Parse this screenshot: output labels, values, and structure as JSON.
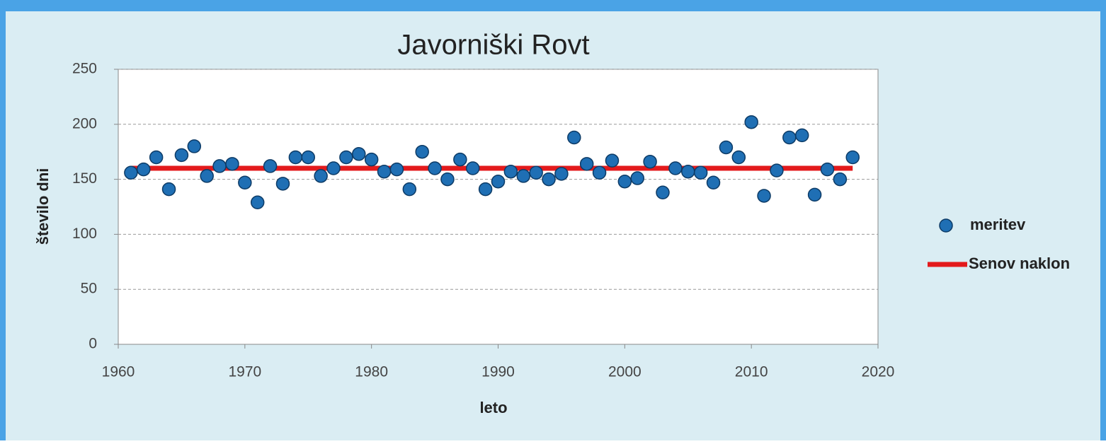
{
  "chart_data": {
    "type": "scatter",
    "title": "Javorniški Rovt",
    "xlabel": "leto",
    "ylabel": "število dni",
    "xlim": [
      1960,
      2020
    ],
    "xticks": [
      1960,
      1970,
      1980,
      1990,
      2000,
      2010,
      2020
    ],
    "ylim": [
      0,
      250
    ],
    "yticks": [
      0,
      50,
      100,
      150,
      200,
      250
    ],
    "grid": true,
    "legend": "right",
    "series": [
      {
        "name": "meritev",
        "mode": "markers",
        "color": "#1f6fb4",
        "x": [
          1961,
          1962,
          1963,
          1964,
          1965,
          1966,
          1967,
          1968,
          1969,
          1970,
          1971,
          1972,
          1973,
          1974,
          1975,
          1976,
          1977,
          1978,
          1979,
          1980,
          1981,
          1982,
          1983,
          1984,
          1985,
          1986,
          1987,
          1988,
          1989,
          1990,
          1991,
          1992,
          1993,
          1994,
          1995,
          1996,
          1997,
          1998,
          1999,
          2000,
          2001,
          2002,
          2003,
          2004,
          2005,
          2006,
          2007,
          2008,
          2009,
          2010,
          2011,
          2012,
          2013,
          2014,
          2015,
          2016,
          2017,
          2018
        ],
        "values": [
          156,
          159,
          170,
          141,
          172,
          180,
          153,
          162,
          164,
          147,
          129,
          162,
          146,
          170,
          170,
          153,
          160,
          170,
          173,
          168,
          157,
          159,
          141,
          175,
          160,
          150,
          168,
          160,
          141,
          148,
          157,
          153,
          156,
          150,
          155,
          188,
          164,
          156,
          167,
          148,
          151,
          166,
          138,
          160,
          157,
          156,
          147,
          179,
          170,
          202,
          135,
          158,
          188,
          190,
          136,
          159,
          150,
          170
        ]
      },
      {
        "name": "Senov naklon",
        "mode": "line",
        "color": "#e31a1c",
        "x": [
          1961,
          2018
        ],
        "values": [
          160,
          160
        ]
      }
    ]
  }
}
